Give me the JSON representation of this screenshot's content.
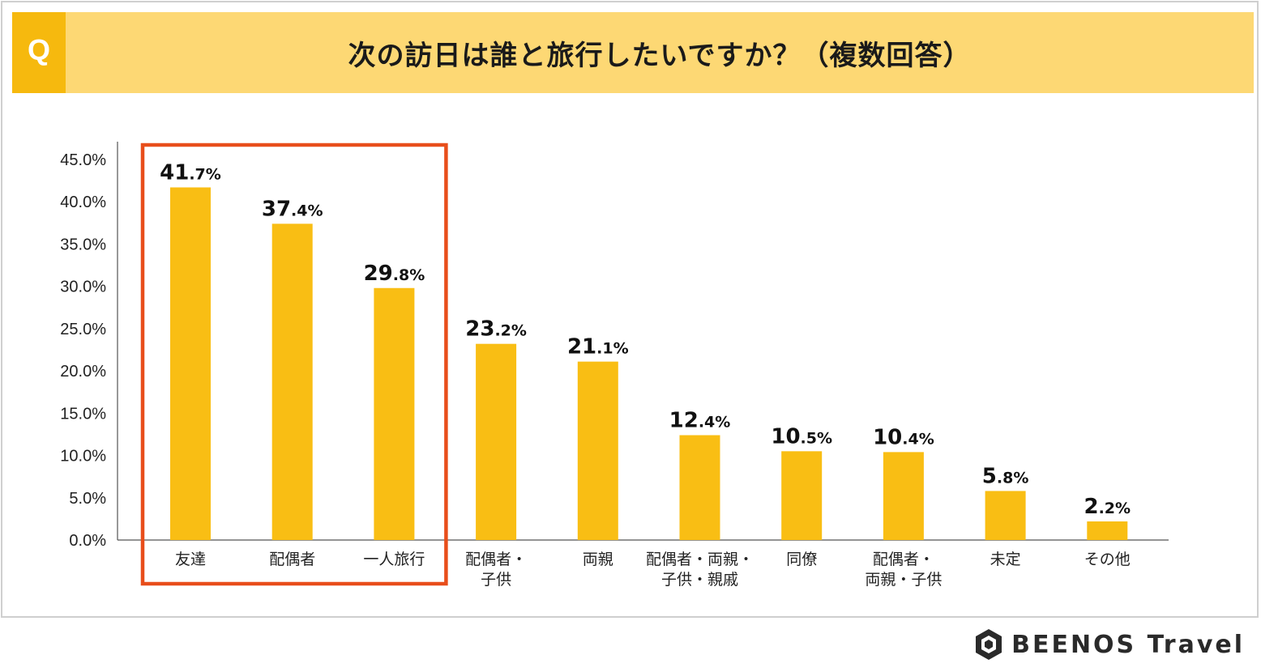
{
  "header": {
    "q_label": "Q",
    "title": "次の訪日は誰と旅行したいですか？（複数回答）"
  },
  "brand": {
    "name": "BEENOS Travel",
    "icon": "beenos-logo-icon"
  },
  "colors": {
    "bar": "#f9be14",
    "header_bg": "#fdd874",
    "q_bg": "#f6b90e",
    "highlight": "#e84e1b"
  },
  "chart_data": {
    "type": "bar",
    "title": "次の訪日は誰と旅行したいですか？（複数回答）",
    "categories": [
      [
        "友達"
      ],
      [
        "配偶者"
      ],
      [
        "一人旅行"
      ],
      [
        "配偶者・",
        "子供"
      ],
      [
        "両親"
      ],
      [
        "配偶者・両親・",
        "子供・親戚"
      ],
      [
        "同僚"
      ],
      [
        "配偶者・",
        "両親・子供"
      ],
      [
        "未定"
      ],
      [
        "その他"
      ]
    ],
    "values": [
      41.7,
      37.4,
      29.8,
      23.2,
      21.1,
      12.4,
      10.5,
      10.4,
      5.8,
      2.2
    ],
    "value_labels": [
      {
        "int": "41",
        "dec": ".7%"
      },
      {
        "int": "37",
        "dec": ".4%"
      },
      {
        "int": "29",
        "dec": ".8%"
      },
      {
        "int": "23",
        "dec": ".2%"
      },
      {
        "int": "21",
        "dec": ".1%"
      },
      {
        "int": "12",
        "dec": ".4%"
      },
      {
        "int": "10",
        "dec": ".5%"
      },
      {
        "int": "10",
        "dec": ".4%"
      },
      {
        "int": "5",
        "dec": ".8%"
      },
      {
        "int": "2",
        "dec": ".2%"
      }
    ],
    "ylim": [
      0,
      45
    ],
    "yticks": [
      "0.0%",
      "5.0%",
      "10.0%",
      "15.0%",
      "20.0%",
      "25.0%",
      "30.0%",
      "35.0%",
      "40.0%",
      "45.0%"
    ],
    "ytick_values": [
      0,
      5,
      10,
      15,
      20,
      25,
      30,
      35,
      40,
      45
    ],
    "xlabel": "",
    "ylabel": "",
    "grid": false,
    "highlight_categories": [
      0,
      1,
      2
    ]
  }
}
